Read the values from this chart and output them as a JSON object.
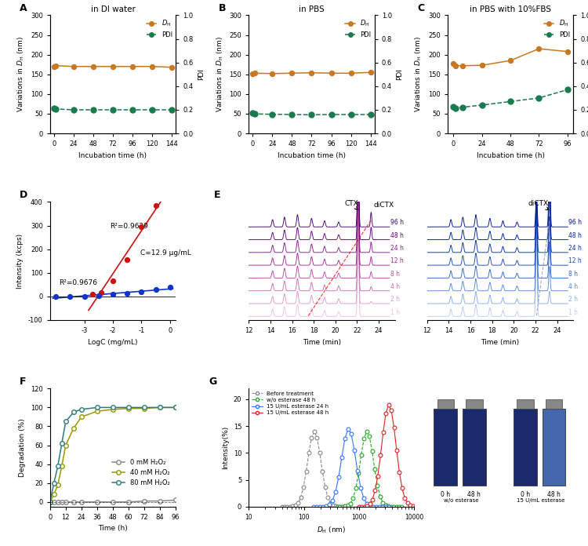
{
  "panel_A": {
    "title": "in DI water",
    "x": [
      0,
      2,
      24,
      48,
      72,
      96,
      120,
      144
    ],
    "dH": [
      170,
      172,
      170,
      170,
      170,
      170,
      170,
      168
    ],
    "PDI_vals": [
      0.215,
      0.207,
      0.2,
      0.2,
      0.2,
      0.2,
      0.2,
      0.2
    ],
    "xticks": [
      0,
      24,
      48,
      72,
      96,
      120,
      144
    ]
  },
  "panel_B": {
    "title": "in PBS",
    "x": [
      0,
      2,
      24,
      48,
      72,
      96,
      120,
      144
    ],
    "dH": [
      152,
      153,
      152,
      153,
      154,
      153,
      153,
      155
    ],
    "PDI_vals": [
      0.175,
      0.165,
      0.162,
      0.16,
      0.158,
      0.16,
      0.16,
      0.16
    ],
    "xticks": [
      0,
      24,
      48,
      72,
      96,
      120,
      144
    ]
  },
  "panel_C": {
    "title": "in PBS with 10%FBS",
    "x": [
      0,
      2,
      8,
      24,
      48,
      72,
      96
    ],
    "dH": [
      178,
      172,
      172,
      173,
      185,
      215,
      208
    ],
    "PDI_vals": [
      0.225,
      0.215,
      0.222,
      0.24,
      0.27,
      0.3,
      0.37
    ],
    "xticks": [
      0,
      24,
      48,
      72,
      96
    ]
  },
  "panel_D": {
    "red_x": [
      -2.7,
      -2.4,
      -2.0,
      -1.5,
      -1.0,
      -0.5
    ],
    "red_y": [
      8,
      15,
      65,
      155,
      295,
      385
    ],
    "blue_x": [
      -4.0,
      -3.5,
      -3.0,
      -2.5,
      -2.0,
      -1.5,
      -1.0,
      -0.5,
      0.0
    ],
    "blue_y": [
      -2,
      0,
      1,
      4,
      8,
      14,
      20,
      28,
      38
    ],
    "r2_red": "R²=0.9629",
    "r2_blue": "R²=0.9676",
    "c_label": "C=12.9 μg/mL",
    "ylabel": "Intensity (kcps)",
    "xlabel": "LogC (mg/mL)",
    "ylim": [
      -100,
      400
    ],
    "xlim": [
      -4.2,
      0.2
    ],
    "xticks": [
      -3,
      -2,
      -1,
      0
    ]
  },
  "panel_F": {
    "x": [
      0,
      3,
      6,
      9,
      12,
      18,
      24,
      36,
      48,
      60,
      72,
      84,
      96
    ],
    "y_0mM": [
      0,
      0,
      0,
      0,
      0,
      0,
      0,
      0,
      0,
      0,
      1,
      1,
      2
    ],
    "y_40mM": [
      0,
      8,
      18,
      38,
      60,
      78,
      90,
      96,
      98,
      99,
      99,
      100,
      100
    ],
    "y_80mM": [
      0,
      20,
      38,
      62,
      85,
      95,
      98,
      100,
      100,
      100,
      100,
      100,
      100
    ],
    "xlabel": "Time (h)",
    "ylabel": "Degradation (%)",
    "ylim": [
      -5,
      120
    ],
    "xlim": [
      0,
      96
    ],
    "yticks": [
      0,
      20,
      40,
      60,
      80,
      100,
      120
    ],
    "xticks": [
      0,
      12,
      24,
      36,
      48,
      60,
      72,
      84,
      96
    ],
    "color_0mM": "#888888",
    "color_40mM": "#999900",
    "color_80mM": "#2e7d7d"
  },
  "colors": {
    "dH_color": "#c87820",
    "PDI_color": "#1a7a50",
    "red_color": "#cc1111",
    "blue_color": "#1133cc",
    "before_treatment": "#888888",
    "wo_esterase": "#22aa22",
    "esterase_24h": "#3377ff",
    "esterase_48h": "#dd2222"
  },
  "panel_E_left_colors": [
    "#f0c0e0",
    "#e098cc",
    "#cc70b8",
    "#bb4da8",
    "#a82898",
    "#882090",
    "#660080",
    "#440070"
  ],
  "panel_E_right_colors": [
    "#b8ccee",
    "#88aae8",
    "#5888e0",
    "#3066d0",
    "#1848c0",
    "#0830b0",
    "#0020a0",
    "#001090"
  ]
}
